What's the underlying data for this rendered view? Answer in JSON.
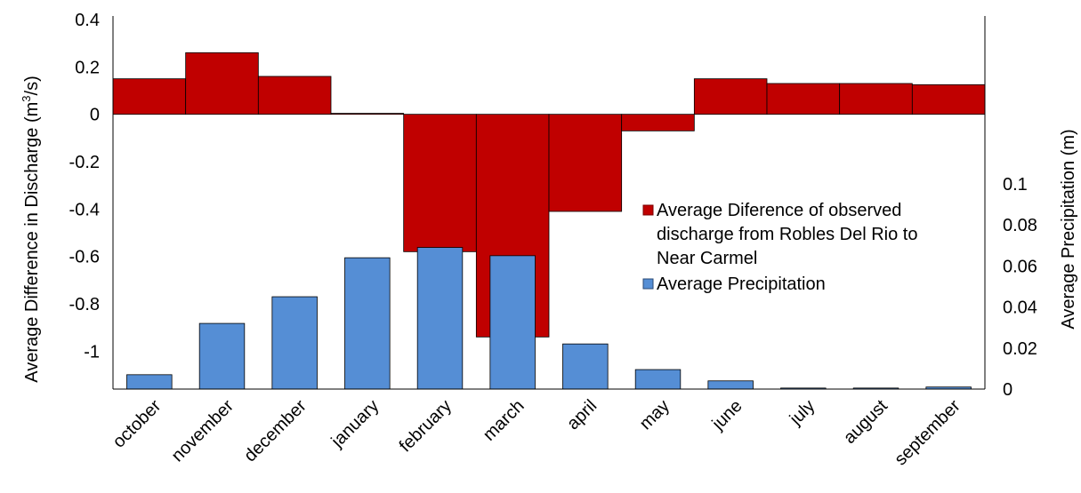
{
  "chart_data": {
    "type": "bar",
    "categories": [
      "october",
      "november",
      "december",
      "january",
      "february",
      "march",
      "april",
      "may",
      "june",
      "july",
      "august",
      "september"
    ],
    "series": [
      {
        "name": "Average Diference of observed discharge from Robles Del Rio to Near Carmel",
        "axis": "left",
        "color": "#C00000",
        "values": [
          0.15,
          0.26,
          0.16,
          0.004,
          -0.58,
          -0.94,
          -0.41,
          -0.07,
          0.15,
          0.13,
          0.13,
          0.125
        ]
      },
      {
        "name": "Average Precipitation",
        "axis": "right",
        "color": "#558ED5",
        "values": [
          0.007,
          0.032,
          0.045,
          0.064,
          0.069,
          0.065,
          0.022,
          0.0095,
          0.004,
          0.0005,
          0.0005,
          0.001
        ]
      }
    ],
    "y_left": {
      "label": "Average Difference in Discharge (m³/s)",
      "ticks": [
        "0.4",
        "0.2",
        "0",
        "-0.2",
        "-0.4",
        "-0.6",
        "-0.8",
        "-1"
      ],
      "tick_values": [
        0.4,
        0.2,
        0,
        -0.2,
        -0.4,
        -0.6,
        -0.8,
        -1
      ],
      "range": [
        -1.16,
        0.4
      ]
    },
    "y_right": {
      "label": "Average Precipitation (m)",
      "ticks": [
        "0.1",
        "0.08",
        "0.06",
        "0.04",
        "0.02",
        "0"
      ],
      "tick_values": [
        0.1,
        0.08,
        0.06,
        0.04,
        0.02,
        0
      ],
      "range": [
        0,
        0.1
      ]
    },
    "legend": {
      "placement": "center-right",
      "entries": [
        {
          "lines": [
            "Average Diference of observed",
            "discharge from Robles Del Rio to",
            "Near Carmel"
          ]
        },
        {
          "lines": [
            "Average Precipitation"
          ]
        }
      ]
    },
    "grid": false
  }
}
